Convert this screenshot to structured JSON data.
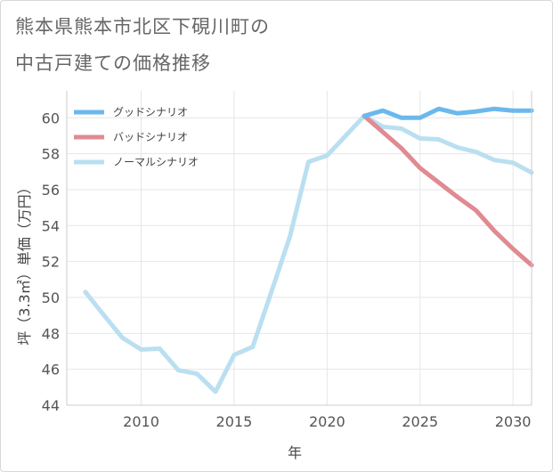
{
  "title_line1": "熊本県熊本市北区下硯川町の",
  "title_line2": "中古戸建ての価格推移",
  "chart_data": {
    "type": "line",
    "xlabel": "年",
    "ylabel": "坪（3.3㎡）単価（万円）",
    "xlim": [
      2006,
      2031
    ],
    "ylim": [
      44,
      61.5
    ],
    "xticks": [
      2010,
      2015,
      2020,
      2025,
      2030
    ],
    "yticks": [
      44,
      46,
      48,
      50,
      52,
      54,
      56,
      58,
      60
    ],
    "grid": true,
    "legend_position": "top-left",
    "series": [
      {
        "name": "グッドシナリオ",
        "color": "#6bb8ec",
        "x": [
          2022,
          2023,
          2024,
          2025,
          2026,
          2027,
          2028,
          2029,
          2030,
          2031
        ],
        "y": [
          60.1,
          60.4,
          60.0,
          60.0,
          60.5,
          60.25,
          60.35,
          60.5,
          60.4,
          60.4
        ]
      },
      {
        "name": "バッドシナリオ",
        "color": "#e08a92",
        "x": [
          2022,
          2023,
          2024,
          2025,
          2026,
          2027,
          2028,
          2029,
          2030,
          2031
        ],
        "y": [
          60.1,
          59.2,
          58.3,
          57.2,
          56.4,
          55.6,
          54.85,
          53.7,
          52.7,
          51.8
        ]
      },
      {
        "name": "ノーマルシナリオ",
        "color": "#badff1",
        "x": [
          2007,
          2008,
          2009,
          2010,
          2011,
          2012,
          2013,
          2014,
          2015,
          2016,
          2017,
          2018,
          2019,
          2020,
          2021,
          2022,
          2023,
          2024,
          2025,
          2026,
          2027,
          2028,
          2029,
          2030,
          2031
        ],
        "y": [
          50.3,
          49.0,
          47.75,
          47.1,
          47.15,
          45.95,
          45.75,
          44.75,
          46.8,
          47.25,
          50.3,
          53.4,
          57.55,
          57.9,
          59.0,
          60.1,
          59.5,
          59.4,
          58.85,
          58.8,
          58.35,
          58.1,
          57.65,
          57.5,
          56.95
        ]
      }
    ]
  }
}
